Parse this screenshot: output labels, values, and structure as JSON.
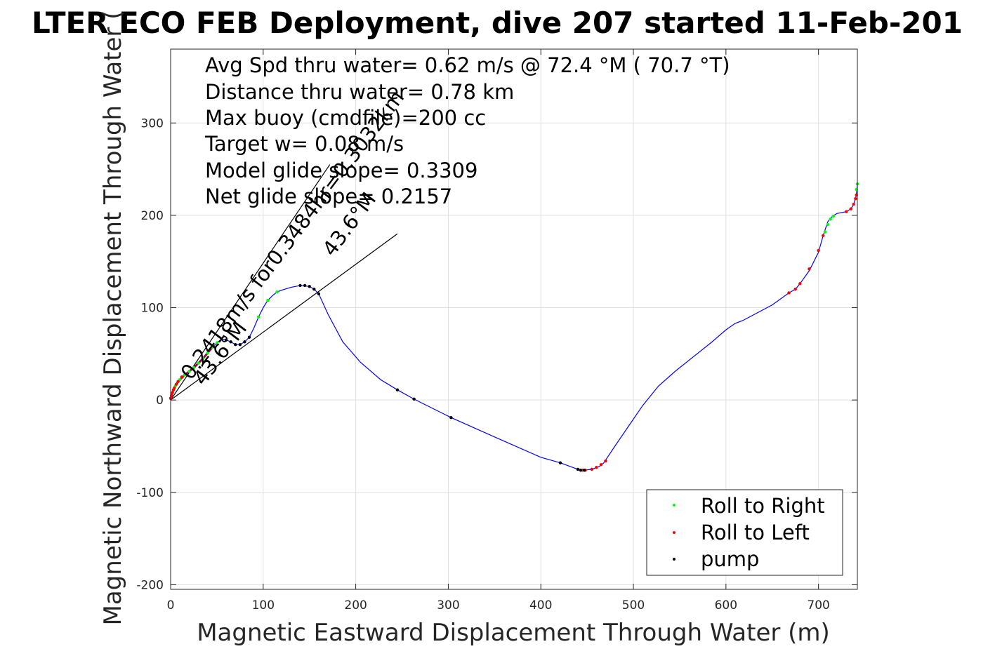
{
  "chart_data": {
    "type": "line",
    "title": "LTER ECO FEB Deployment, dive 207 started 11-Feb-201",
    "xlabel": "Magnetic Eastward Displacement Through Water (m)",
    "ylabel": "Magnetic Northward Displacement Through Water (",
    "xlim": [
      0,
      742
    ],
    "ylim": [
      -205,
      380
    ],
    "xticks": [
      0,
      100,
      200,
      300,
      400,
      500,
      600,
      700
    ],
    "yticks": [
      -200,
      -100,
      0,
      100,
      200,
      300
    ],
    "xtick_labels": [
      "0",
      "100",
      "200",
      "300",
      "400",
      "500",
      "600",
      "700"
    ],
    "ytick_labels": [
      "-200",
      "-100",
      "0",
      "100",
      "200",
      "300"
    ],
    "grid": true,
    "legend_position": "bottom-right",
    "info_lines": [
      "Avg Spd thru water=  0.62 m/s @  72.4 °M ( 70.7 °T)",
      "Distance thru water= 0.78 km",
      "Max buoy (cmdfile)=200 cc",
      "Target w= 0.08 m/s",
      "Model glide slope= 0.3309",
      "Net glide slope= 0.2157"
    ],
    "rotated_labels": {
      "label_a": "0.2418m/s for0.3484hr=0.3032km",
      "label_b": "43.6°M",
      "label_c": "43.6°M"
    },
    "reference_lines": [
      {
        "x": [
          0,
          245
        ],
        "y": [
          0,
          180
        ]
      },
      {
        "x": [
          0,
          172
        ],
        "y": [
          0,
          255
        ]
      }
    ],
    "track": {
      "x": [
        0,
        1,
        3,
        6,
        10,
        15,
        20,
        25,
        30,
        35,
        40,
        45,
        50,
        55,
        60,
        65,
        70,
        75,
        80,
        85,
        90,
        95,
        100,
        105,
        110,
        115,
        120,
        130,
        140,
        150,
        155,
        160,
        170,
        186,
        205,
        227,
        245,
        263,
        303,
        350,
        400,
        421,
        440,
        447,
        455,
        463,
        468,
        472,
        480,
        495,
        510,
        527,
        545,
        565,
        585,
        600,
        610,
        618,
        650,
        668,
        675,
        680,
        690,
        700,
        705,
        710,
        715,
        720,
        730,
        735,
        738,
        741,
        742
      ],
      "y": [
        0,
        6,
        11,
        17,
        22,
        27,
        31,
        35,
        40,
        45,
        51,
        57,
        62,
        66,
        65,
        63,
        60,
        60,
        63,
        68,
        78,
        90,
        100,
        108,
        113,
        117,
        119,
        122,
        124,
        123,
        120,
        115,
        93,
        63,
        41,
        22,
        11,
        1,
        -19,
        -40,
        -62,
        -68,
        -75,
        -76,
        -75,
        -72,
        -68,
        -62,
        -50,
        -28,
        -6,
        15,
        31,
        47,
        63,
        76,
        83,
        86,
        103,
        116,
        120,
        126,
        140,
        160,
        178,
        193,
        199,
        202,
        204,
        207,
        212,
        222,
        234
      ]
    },
    "series": [
      {
        "name": "Roll to Right",
        "color": "#00ff00",
        "x": [
          5,
          10,
          15,
          20,
          25,
          30,
          35,
          40,
          45,
          50,
          95,
          105,
          115,
          707,
          710,
          713,
          716,
          741,
          742
        ],
        "y": [
          15,
          22,
          27,
          31,
          35,
          40,
          45,
          51,
          57,
          62,
          90,
          108,
          117,
          182,
          190,
          196,
          199,
          228,
          234
        ]
      },
      {
        "name": "Roll to Left",
        "color": "#ff0000",
        "x": [
          0,
          1,
          2,
          3,
          4,
          6,
          8,
          12,
          445,
          448,
          455,
          460,
          465,
          470,
          668,
          675,
          680,
          690,
          700,
          705,
          730,
          735,
          738,
          740,
          741
        ],
        "y": [
          2,
          5,
          8,
          11,
          13,
          17,
          20,
          25,
          -76,
          -76,
          -75,
          -73,
          -70,
          -66,
          116,
          120,
          126,
          142,
          162,
          178,
          204,
          207,
          212,
          218,
          222
        ]
      },
      {
        "name": "pump",
        "color": "#000000",
        "x": [
          60,
          65,
          70,
          75,
          80,
          85,
          140,
          145,
          150,
          155,
          160,
          245,
          263,
          303,
          421,
          440,
          443,
          447
        ],
        "y": [
          65,
          63,
          60,
          60,
          63,
          68,
          124,
          124,
          123,
          120,
          115,
          11,
          1,
          -19,
          -68,
          -75,
          -76,
          -76
        ]
      }
    ]
  },
  "colors": {
    "track": "#0000ff",
    "track_start": "#a0004a",
    "reference_line": "#000000",
    "grid": "#e0e0e0",
    "axis": "#262626"
  }
}
